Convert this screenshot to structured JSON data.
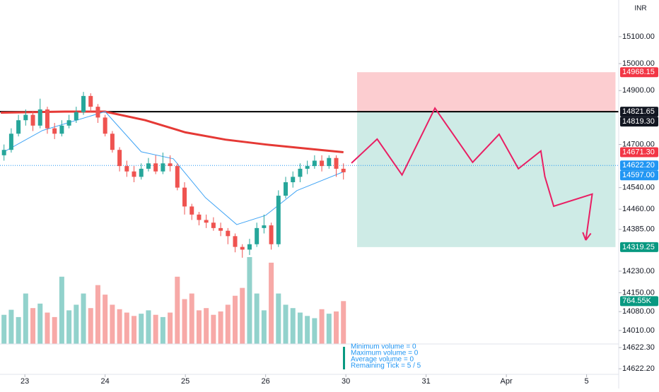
{
  "chart_data": {
    "type": "candlestick",
    "currency": "INR",
    "xlim": [
      -0.31,
      7.4
    ],
    "ylim": [
      13960,
      15236
    ],
    "xticks": [
      {
        "value": 0,
        "label": "23"
      },
      {
        "value": 1,
        "label": "24"
      },
      {
        "value": 2,
        "label": "25"
      },
      {
        "value": 3,
        "label": "26"
      },
      {
        "value": 4,
        "label": "30"
      },
      {
        "value": 5,
        "label": "31"
      },
      {
        "value": 6,
        "label": "Apr"
      },
      {
        "value": 7,
        "label": "5"
      }
    ],
    "yticks": [
      {
        "value": 15100,
        "label": "15100.00"
      },
      {
        "value": 15000,
        "label": "15000.00"
      },
      {
        "value": 14900,
        "label": "14900.00"
      },
      {
        "value": 14700,
        "label": "14700.00"
      },
      {
        "value": 14540,
        "label": "14540.00"
      },
      {
        "value": 14460,
        "label": "14460.00"
      },
      {
        "value": 14385,
        "label": "14385.00"
      },
      {
        "value": 14230,
        "label": "14230.00"
      },
      {
        "value": 14150,
        "label": "14150.00"
      },
      {
        "value": 14080,
        "label": "14080.00"
      },
      {
        "value": 14010,
        "label": "14010.00"
      }
    ],
    "up_color": "#26a69a",
    "down_color": "#ef5350",
    "candles": {
      "x": [
        -0.26,
        -0.17,
        -0.08,
        0.01,
        0.1,
        0.19,
        0.28,
        0.37,
        0.46,
        0.55,
        0.64,
        0.73,
        0.82,
        0.91,
        1.0,
        1.09,
        1.18,
        1.27,
        1.36,
        1.45,
        1.54,
        1.63,
        1.72,
        1.81,
        1.9,
        1.99,
        2.08,
        2.17,
        2.26,
        2.35,
        2.44,
        2.53,
        2.62,
        2.71,
        2.8,
        2.89,
        2.98,
        3.07,
        3.16,
        3.25,
        3.34,
        3.43,
        3.52,
        3.61,
        3.7,
        3.79,
        3.88,
        3.97
      ],
      "open": [
        14660,
        14680,
        14740,
        14790,
        14810,
        14770,
        14830,
        14760,
        14740,
        14770,
        14790,
        14820,
        14880,
        14840,
        14800,
        14740,
        14680,
        14620,
        14600,
        14580,
        14610,
        14630,
        14600,
        14630,
        14620,
        14540,
        14470,
        14440,
        14420,
        14410,
        14390,
        14380,
        14360,
        14320,
        14310,
        14330,
        14390,
        14400,
        14330,
        14510,
        14560,
        14580,
        14610,
        14620,
        14640,
        14620,
        14650,
        14610
      ],
      "high": [
        14700,
        14760,
        14810,
        14830,
        14825,
        14870,
        14840,
        14780,
        14790,
        14810,
        14840,
        14895,
        14890,
        14850,
        14810,
        14750,
        14690,
        14640,
        14620,
        14630,
        14650,
        14660,
        14670,
        14660,
        14630,
        14560,
        14480,
        14450,
        14440,
        14430,
        14410,
        14390,
        14370,
        14330,
        14350,
        14410,
        14440,
        14410,
        14530,
        14580,
        14600,
        14630,
        14640,
        14660,
        14660,
        14660,
        14660,
        14630
      ],
      "low": [
        14640,
        14670,
        14730,
        14770,
        14750,
        14760,
        14740,
        14720,
        14730,
        14760,
        14780,
        14810,
        14820,
        14780,
        14730,
        14670,
        14600,
        14580,
        14560,
        14570,
        14600,
        14590,
        14590,
        14600,
        14530,
        14440,
        14420,
        14400,
        14390,
        14380,
        14360,
        14330,
        14300,
        14280,
        14290,
        14320,
        14370,
        14310,
        14320,
        14500,
        14540,
        14560,
        14590,
        14610,
        14600,
        14610,
        14580,
        14570
      ],
      "close": [
        14680,
        14740,
        14790,
        14810,
        14770,
        14830,
        14760,
        14740,
        14770,
        14790,
        14820,
        14880,
        14840,
        14800,
        14740,
        14680,
        14620,
        14600,
        14580,
        14610,
        14630,
        14600,
        14630,
        14620,
        14540,
        14470,
        14440,
        14420,
        14410,
        14390,
        14380,
        14360,
        14320,
        14310,
        14330,
        14390,
        14400,
        14330,
        14510,
        14560,
        14580,
        14610,
        14620,
        14640,
        14620,
        14650,
        14610,
        14597
      ],
      "volume": [
        520000,
        610000,
        480000,
        900000,
        640000,
        720000,
        560000,
        480000,
        1200000,
        600000,
        700000,
        900000,
        640000,
        1050000,
        880000,
        700000,
        620000,
        560000,
        500000,
        540000,
        600000,
        520000,
        480000,
        560000,
        1200000,
        800000,
        900000,
        600000,
        640000,
        520000,
        580000,
        700000,
        860000,
        1000000,
        1550000,
        900000,
        600000,
        1450000,
        900000,
        700000,
        640000,
        560000,
        500000,
        460000,
        620000,
        540000,
        580000,
        764550
      ]
    },
    "volume_lim": [
      0,
      1600000
    ],
    "moving_averages": [
      {
        "color": "#e53935",
        "x": [
          -0.3,
          0.5,
          1.0,
          1.5,
          2.0,
          2.5,
          3.0,
          3.5,
          3.97
        ],
        "values": [
          14818,
          14822,
          14822,
          14790,
          14745,
          14718,
          14700,
          14685,
          14671.3
        ]
      },
      {
        "color": "#42a5f5",
        "x": [
          -0.26,
          0.22,
          1.0,
          1.45,
          1.85,
          2.25,
          2.64,
          3.0,
          3.39,
          3.98
        ],
        "values": [
          14673,
          14752,
          14822,
          14673,
          14647,
          14503,
          14403,
          14437,
          14529,
          14600
        ]
      }
    ],
    "hline": {
      "value": 14821.65,
      "color": "#000000"
    },
    "position": {
      "x": [
        4.14,
        7.36
      ],
      "stop": 14968.15,
      "entry": 14821.65,
      "target": 14319.25
    },
    "projection": {
      "color": "#e91e63",
      "x": [
        4.07,
        4.39,
        4.7,
        5.11,
        5.58,
        5.91,
        6.15,
        6.43,
        6.48,
        6.59,
        7.07,
        6.99
      ],
      "values": [
        14631,
        14720,
        14587,
        14835,
        14634,
        14738,
        14610,
        14676,
        14581,
        14471,
        14516,
        14345
      ]
    },
    "price_badges": [
      {
        "value": 14968.15,
        "label": "14968.15",
        "color": "#f23645"
      },
      {
        "value": 14821.65,
        "label": "14821.65",
        "color": "#131722"
      },
      {
        "value": 14819.3,
        "label": "14819.30",
        "color": "#131722"
      },
      {
        "value": 14671.3,
        "label": "14671.30",
        "color": "#f23645"
      },
      {
        "value": 14622.2,
        "label": "14622.20",
        "color": "#2196f3"
      },
      {
        "value": 14597.0,
        "label": "14597.00",
        "color": "#2196f3"
      },
      {
        "value": 14319.25,
        "label": "14319.25",
        "color": "#089981"
      }
    ],
    "volume_badge": {
      "value": 764550,
      "label": "764.55K",
      "color": "#089981"
    },
    "indicator": {
      "lines": [
        "Minimum volume = 0",
        "Maximum volume = 0",
        "Average volume = 0",
        "Remaining Tick = 5 / 5"
      ],
      "ylim": [
        14622.107,
        14622.317
      ],
      "yticks": [
        {
          "value": 14622.3,
          "label": "14622.30"
        },
        {
          "value": 14622.2,
          "label": "14622.20"
        }
      ]
    }
  }
}
